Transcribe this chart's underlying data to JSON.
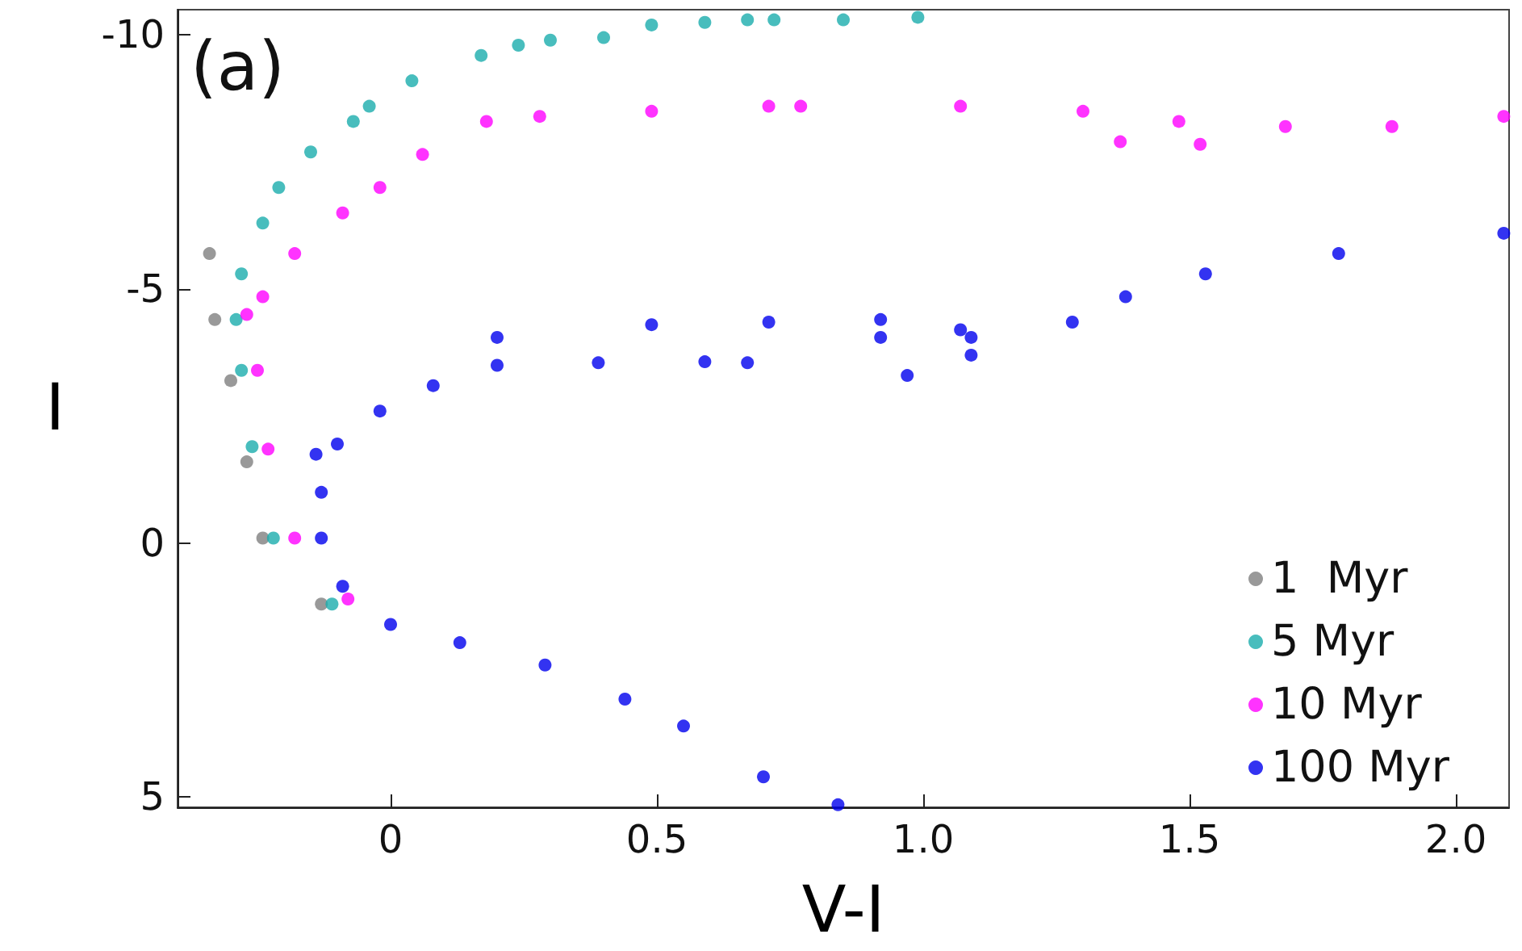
{
  "chart_data": {
    "type": "scatter",
    "xlabel": "V-I",
    "ylabel": "I",
    "annotations": [
      "(a)"
    ],
    "xlim": [
      -0.4,
      2.1
    ],
    "ylim": [
      5.2,
      -10.5
    ],
    "xticks": [
      0,
      0.5,
      {
        "value": 1,
        "label": "1.0"
      },
      1.5,
      {
        "value": 2,
        "label": "2.0"
      }
    ],
    "yticks": [
      -10,
      -5,
      0,
      5
    ],
    "grid": false,
    "legend": "bottom right",
    "marker": "circle",
    "series": [
      {
        "name": "1  Myr",
        "color": "#808080",
        "x": [
          -0.34,
          -0.33,
          -0.3,
          -0.27,
          -0.24,
          -0.13
        ],
        "values": [
          -5.7,
          -4.4,
          -3.2,
          -1.6,
          -0.1,
          1.2
        ]
      },
      {
        "name": "5 Myr",
        "color": "#1aadad",
        "x": [
          -0.26,
          -0.28,
          -0.29,
          -0.28,
          -0.24,
          -0.21,
          -0.22,
          -0.11,
          -0.15,
          -0.07,
          -0.04,
          0.04,
          0.17,
          0.24,
          0.3,
          0.4,
          0.49,
          0.59,
          0.67,
          0.72,
          0.85,
          0.99
        ],
        "values": [
          -1.9,
          -3.4,
          -4.4,
          -5.3,
          -6.3,
          -7,
          -0.1,
          1.2,
          -7.7,
          -8.3,
          -8.6,
          -9.1,
          -9.6,
          -9.8,
          -9.9,
          -9.95,
          -10.2,
          -10.25,
          -10.3,
          -10.3,
          -10.3,
          -10.35
        ]
      },
      {
        "name": "10 Myr",
        "color": "#ff00ff",
        "x": [
          -0.18,
          -0.08,
          -0.23,
          -0.25,
          -0.27,
          -0.24,
          -0.18,
          -0.09,
          -0.02,
          0.06,
          0.18,
          0.28,
          0.49,
          0.71,
          0.77,
          1.07,
          1.3,
          1.48,
          1.68,
          1.88,
          2.09,
          1.37,
          1.52
        ],
        "values": [
          -0.1,
          1.1,
          -1.85,
          -3.4,
          -4.5,
          -4.85,
          -5.7,
          -6.5,
          -7,
          -7.65,
          -8.3,
          -8.4,
          -8.5,
          -8.6,
          -8.6,
          -8.6,
          -8.5,
          -8.3,
          -8.2,
          -8.2,
          -8.4,
          -7.9,
          -7.85
        ]
      },
      {
        "name": "100 Myr",
        "color": "#0000ee",
        "x": [
          -0.14,
          -0.1,
          -0.13,
          -0.13,
          -0.09,
          0,
          0.13,
          0.29,
          0.44,
          0.55,
          0.7,
          0.84,
          -0.02,
          0.08,
          0.2,
          0.39,
          0.59,
          0.67,
          0.97,
          1.09,
          1.28,
          1.38,
          1.53,
          1.78,
          2.09,
          0.2,
          0.49,
          0.71,
          0.92,
          1.07,
          0.92,
          1.09
        ],
        "values": [
          -1.75,
          -1.95,
          -1,
          -0.1,
          0.85,
          1.6,
          1.96,
          2.4,
          3.07,
          3.6,
          4.6,
          5.15,
          -2.6,
          -3.1,
          -3.5,
          -3.55,
          -3.57,
          -3.55,
          -3.3,
          -3.7,
          -4.35,
          -4.85,
          -5.3,
          -5.7,
          -6.1,
          -4.05,
          -4.3,
          -4.35,
          -4.4,
          -4.2,
          -4.05,
          -4.05
        ]
      }
    ]
  }
}
